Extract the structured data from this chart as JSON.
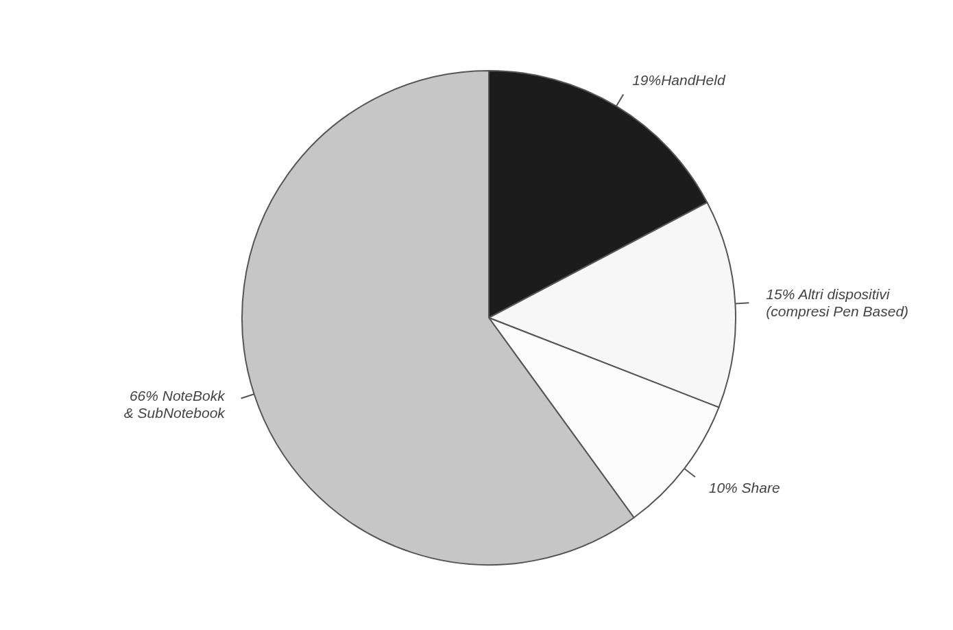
{
  "chart_data": {
    "type": "pie",
    "categories": [
      "19%HandHeld",
      "15% Altri dispositivi (compresi Pen Based)",
      "10% Share",
      "66% NoteBokk & SubNotebook"
    ],
    "values": [
      19,
      15,
      10,
      66
    ],
    "colors": [
      "#1c1c1c",
      "#f7f7f7",
      "#fbfbfb",
      "#c6c6c6"
    ],
    "legend": false
  }
}
